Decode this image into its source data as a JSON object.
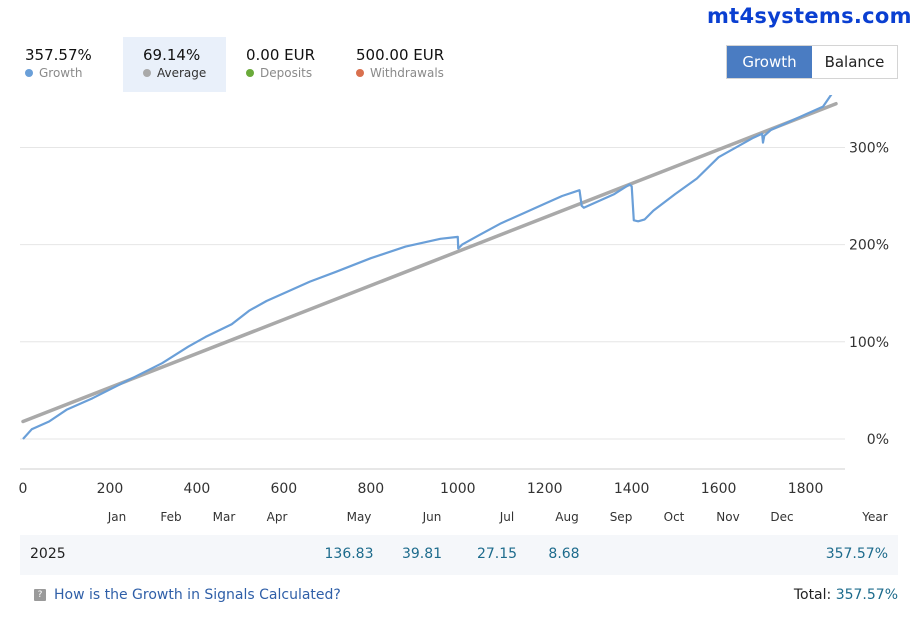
{
  "brand": "mt4systems.com",
  "stats": [
    {
      "value": "357.57%",
      "label": "Growth",
      "color": "#6a9fd8",
      "active": false
    },
    {
      "value": "69.14%",
      "label": "Average",
      "color": "#a9a9a9",
      "active": true
    },
    {
      "value": "0.00 EUR",
      "label": "Deposits",
      "color": "#6aaa3a",
      "active": false
    },
    {
      "value": "500.00 EUR",
      "label": "Withdrawals",
      "color": "#d9704e",
      "active": false
    }
  ],
  "toggle": {
    "growth_label": "Growth",
    "balance_label": "Balance"
  },
  "chart_data": {
    "type": "line",
    "title": "",
    "xlabel": "",
    "ylabel": "",
    "x_ticks": [
      "0",
      "200",
      "400",
      "600",
      "800",
      "1000",
      "1200",
      "1400",
      "1600",
      "1800"
    ],
    "y_ticks": [
      "0%",
      "100%",
      "200%",
      "300%"
    ],
    "xlim": [
      0,
      1870
    ],
    "ylim": [
      -35,
      355
    ],
    "series": [
      {
        "name": "Growth",
        "color": "#6a9fd8",
        "x": [
          0,
          20,
          60,
          100,
          160,
          240,
          320,
          380,
          420,
          480,
          520,
          560,
          600,
          660,
          720,
          800,
          880,
          960,
          1000,
          1001,
          1010,
          1050,
          1100,
          1150,
          1200,
          1240,
          1280,
          1285,
          1290,
          1320,
          1360,
          1395,
          1400,
          1405,
          1415,
          1430,
          1450,
          1500,
          1550,
          1600,
          1640,
          1680,
          1700,
          1702,
          1705,
          1720,
          1760,
          1800,
          1840,
          1860,
          1870
        ],
        "values": [
          0,
          10,
          18,
          30,
          42,
          60,
          78,
          95,
          105,
          118,
          132,
          142,
          150,
          162,
          172,
          186,
          198,
          206,
          208,
          196,
          200,
          210,
          222,
          232,
          242,
          250,
          256,
          240,
          238,
          244,
          252,
          262,
          260,
          225,
          224,
          226,
          235,
          252,
          268,
          290,
          300,
          310,
          314,
          305,
          312,
          318,
          326,
          334,
          342,
          355,
          357.57
        ]
      },
      {
        "name": "Average",
        "color": "#a9a9a9",
        "x": [
          0,
          1870
        ],
        "values": [
          18,
          345
        ]
      }
    ],
    "month_labels": [
      "Jan",
      "Feb",
      "Mar",
      "Apr",
      "May",
      "Jun",
      "Jul",
      "Aug",
      "Sep",
      "Oct",
      "Nov",
      "Dec",
      "Year"
    ],
    "legend": "top-left"
  },
  "monthly": {
    "year": "2025",
    "values": {
      "May": "136.83",
      "Jun": "39.81",
      "Jul": "27.15",
      "Aug": "8.68"
    },
    "year_total": "357.57%"
  },
  "footer": {
    "link_label": "How is the Growth in Signals Calculated?",
    "total_label": "Total:",
    "total_value": "357.57%"
  }
}
